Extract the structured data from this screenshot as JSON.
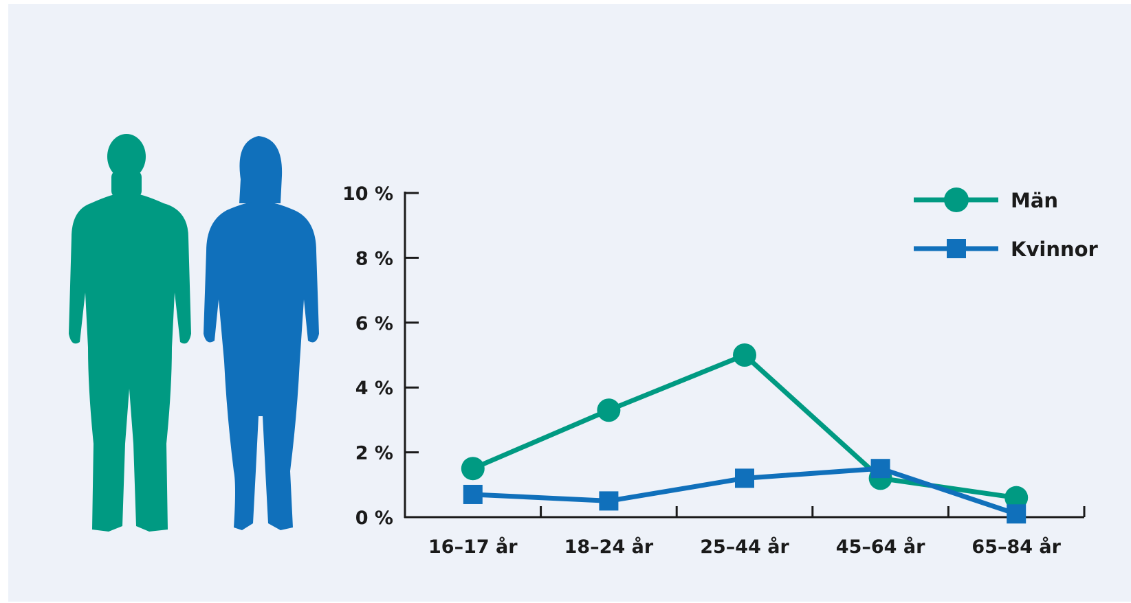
{
  "colors": {
    "men": "#009a82",
    "women": "#1070bb",
    "axis": "#1a1a1a",
    "background": "#eef2f9"
  },
  "icons": [
    "man-silhouette-icon",
    "woman-silhouette-icon"
  ],
  "chart_data": {
    "type": "line",
    "title": "",
    "xlabel": "",
    "ylabel": "",
    "categories": [
      "16–17 år",
      "18–24 år",
      "25–44 år",
      "45–64 år",
      "65–84 år"
    ],
    "ylim": [
      0,
      10
    ],
    "yticks": [
      0,
      2,
      4,
      6,
      8,
      10
    ],
    "ytick_labels": [
      "0 %",
      "2 %",
      "4 %",
      "6 %",
      "8 %",
      "10 %"
    ],
    "grid": false,
    "legend_position": "top-right",
    "series": [
      {
        "name": "Män",
        "marker": "circle",
        "values": [
          1.5,
          3.3,
          5.0,
          1.2,
          0.6
        ]
      },
      {
        "name": "Kvinnor",
        "marker": "square",
        "values": [
          0.7,
          0.5,
          1.2,
          1.5,
          0.1
        ]
      }
    ]
  }
}
